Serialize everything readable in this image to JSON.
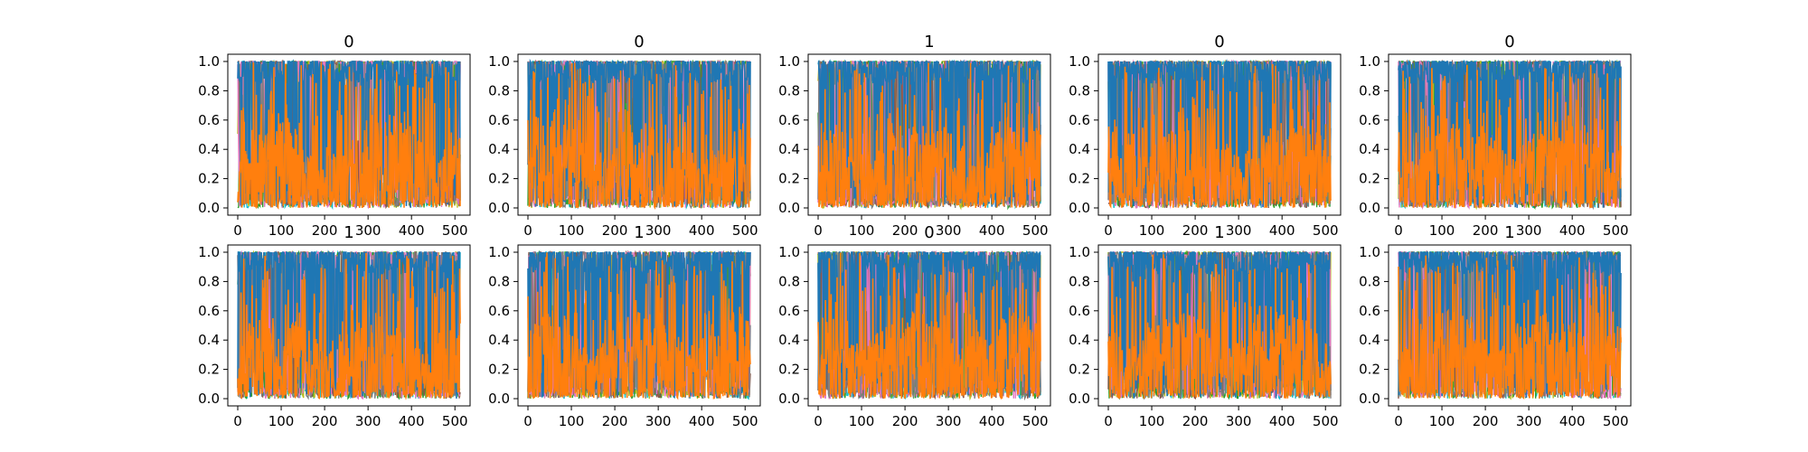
{
  "chart_data": {
    "type": "line",
    "layout": "2 rows x 5 columns of line-plot panels",
    "series_colors": [
      "#1f77b4",
      "#ff7f0e",
      "#17becf",
      "#bcbd22",
      "#2ca02c",
      "#8c564b",
      "#e377c2",
      "#7f7f7f"
    ],
    "dominant_series": [
      "#1f77b4",
      "#ff7f0e"
    ],
    "x_range": [
      0,
      512
    ],
    "y_range": [
      0,
      1
    ],
    "x_ticks": [
      "0",
      "100",
      "200",
      "300",
      "400",
      "500"
    ],
    "y_ticks": [
      "0.0",
      "0.2",
      "0.4",
      "0.6",
      "0.8",
      "1.0"
    ],
    "grid": false,
    "legend": "none",
    "panels": [
      {
        "title": "0",
        "seed": 11
      },
      {
        "title": "0",
        "seed": 23
      },
      {
        "title": "1",
        "seed": 37
      },
      {
        "title": "0",
        "seed": 41
      },
      {
        "title": "0",
        "seed": 53
      },
      {
        "title": "1",
        "seed": 67
      },
      {
        "title": "1",
        "seed": 71
      },
      {
        "title": "0",
        "seed": 83
      },
      {
        "title": "1",
        "seed": 97
      },
      {
        "title": "1",
        "seed": 101
      }
    ]
  }
}
